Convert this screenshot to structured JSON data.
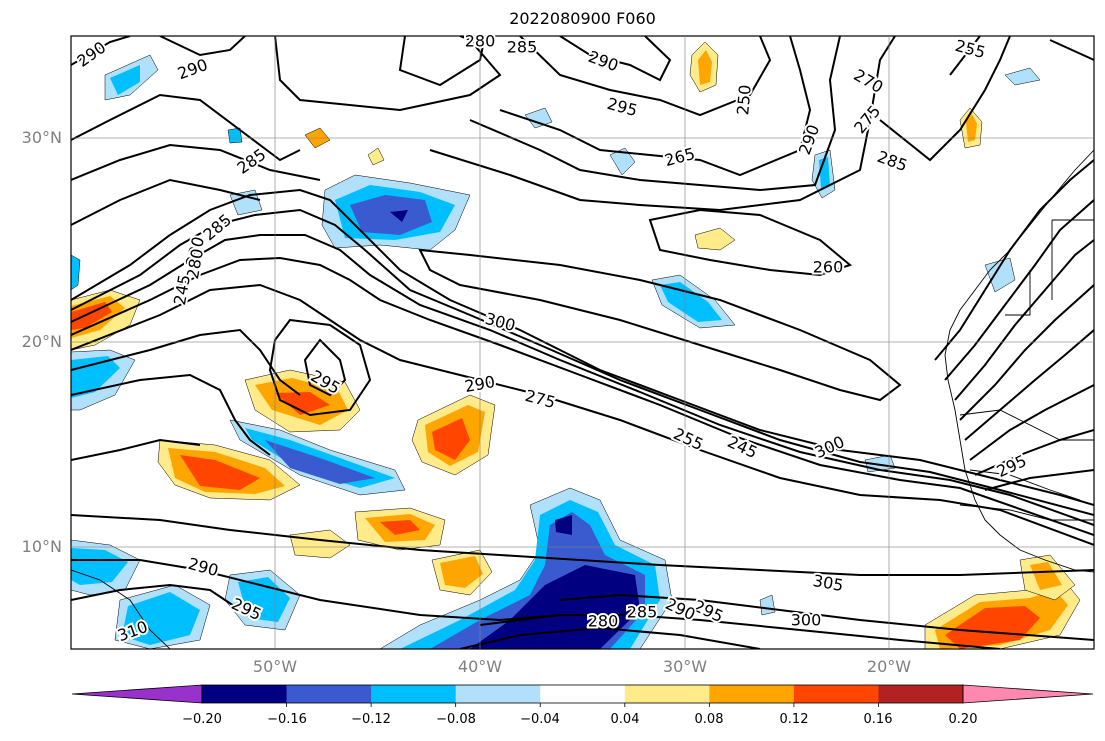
{
  "title": "2022080900 F060",
  "lat_labels": [
    "30°N",
    "20°N",
    "10°N"
  ],
  "lon_labels": [
    "50°W",
    "40°W",
    "30°W",
    "20°W"
  ],
  "colorbar": {
    "ticks": [
      "−0.20",
      "−0.16",
      "−0.12",
      "−0.08",
      "−0.04",
      "0.04",
      "0.08",
      "0.12",
      "0.16",
      "0.20"
    ],
    "colors": [
      "#9932cc",
      "#000080",
      "#3a5bd0",
      "#00bfff",
      "#b0e0fa",
      "#ffffff",
      "#ffeb8a",
      "#ffa500",
      "#ff4500",
      "#b22222",
      "#ff88b0"
    ]
  },
  "contour_labels": [
    "290",
    "290",
    "280",
    "285",
    "290",
    "295",
    "255",
    "270",
    "275",
    "285",
    "280",
    "265",
    "250",
    "290",
    "285",
    "285",
    "280",
    "245",
    "260",
    "300",
    "295",
    "290",
    "275",
    "255",
    "245",
    "300",
    "295",
    "290",
    "295",
    "310",
    "305",
    "300",
    "295",
    "290",
    "285",
    "280"
  ]
}
